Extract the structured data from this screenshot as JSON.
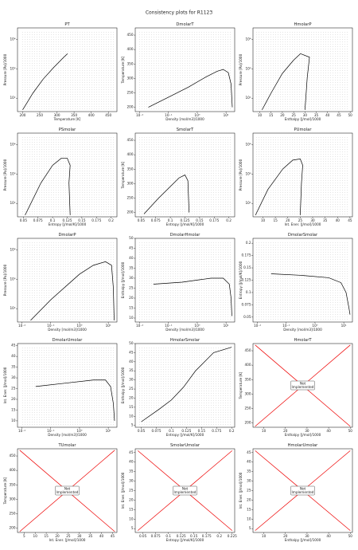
{
  "title": "Consistency plots for R1123",
  "chart_data": [
    {
      "type": "line",
      "title": "PT",
      "xlabel": "Temperature [K]",
      "ylabel": "Pressure [Pa]/1000",
      "xlim": [
        185,
        475
      ],
      "xticks": [
        200,
        250,
        300,
        350,
        400,
        450
      ],
      "ylim": [
        35,
        25000
      ],
      "yscale": "log",
      "yticks": [
        {
          "value": 100,
          "label": "10²"
        },
        {
          "value": 1000,
          "label": "10³"
        },
        {
          "value": 10000,
          "label": "10⁴"
        }
      ],
      "series": [
        {
          "color": "#000000",
          "x": [
            200,
            230,
            260,
            290,
            320,
            331
          ],
          "values": [
            40,
            150,
            450,
            1100,
            2500,
            3300
          ]
        }
      ]
    },
    {
      "type": "line",
      "title": "DmolarT",
      "xlabel": "Density [mol/m3]/1000",
      "ylabel": "Temperature [K]",
      "xlim": [
        0.007,
        20
      ],
      "xscale": "log",
      "xticks": [
        {
          "value": 0.01,
          "label": "10⁻²"
        },
        {
          "value": 0.1,
          "label": "10⁻¹"
        },
        {
          "value": 1,
          "label": "10⁰"
        },
        {
          "value": 10,
          "label": "10¹"
        }
      ],
      "ylim": [
        185,
        475
      ],
      "yticks": [
        200,
        250,
        300,
        350,
        400,
        450
      ],
      "series": [
        {
          "color": "#000000",
          "x": [
            0.02,
            0.1,
            0.5,
            2,
            5,
            8,
            12,
            15,
            16.5
          ],
          "values": [
            200,
            235,
            270,
            305,
            325,
            331,
            320,
            280,
            200
          ]
        }
      ]
    },
    {
      "type": "line",
      "title": "HmolarP",
      "xlabel": "Enthalpy [J/mol]/1000",
      "ylabel": "Pressure [Pa]/1000",
      "xlim": [
        7,
        51
      ],
      "xticks": [
        10,
        15,
        20,
        25,
        30,
        35,
        40,
        45,
        50
      ],
      "ylim": [
        35,
        25000
      ],
      "yscale": "log",
      "yticks": [
        {
          "value": 100,
          "label": "10²"
        },
        {
          "value": 1000,
          "label": "10³"
        },
        {
          "value": 10000,
          "label": "10⁴"
        }
      ],
      "series": [
        {
          "color": "#000000",
          "x": [
            11,
            15,
            20,
            25,
            28,
            32,
            31,
            30
          ],
          "values": [
            40,
            150,
            700,
            2000,
            3300,
            2500,
            500,
            40
          ]
        }
      ]
    },
    {
      "type": "line",
      "title": "PSmolar",
      "xlabel": "Entropy [J/mol/K]/1000",
      "ylabel": "Pressure [Pa]/1000",
      "xlim": [
        0.04,
        0.21
      ],
      "xticks": [
        0.05,
        0.075,
        0.1,
        0.125,
        0.15,
        0.175,
        0.2
      ],
      "ylim": [
        35,
        25000
      ],
      "yscale": "log",
      "yticks": [
        {
          "value": 100,
          "label": "10²"
        },
        {
          "value": 1000,
          "label": "10³"
        },
        {
          "value": 10000,
          "label": "10⁴"
        }
      ],
      "series": [
        {
          "color": "#000000",
          "x": [
            0.053,
            0.08,
            0.1,
            0.115,
            0.125,
            0.13,
            0.128,
            0.13
          ],
          "values": [
            40,
            500,
            2000,
            3500,
            3500,
            2000,
            500,
            40
          ]
        }
      ]
    },
    {
      "type": "line",
      "title": "SmolarT",
      "xlabel": "Entropy [J/mol/K]/1000",
      "ylabel": "Temperature [K]",
      "xlim": [
        0.04,
        0.21
      ],
      "xticks": [
        0.05,
        0.075,
        0.1,
        0.125,
        0.15,
        0.175,
        0.2
      ],
      "ylim": [
        185,
        475
      ],
      "yticks": [
        200,
        250,
        300,
        350,
        400,
        450
      ],
      "series": [
        {
          "color": "#000000",
          "x": [
            0.055,
            0.08,
            0.1,
            0.115,
            0.125,
            0.13,
            0.132
          ],
          "values": [
            195,
            250,
            290,
            320,
            330,
            310,
            200
          ]
        }
      ]
    },
    {
      "type": "line",
      "title": "PUmolar",
      "xlabel": "Int. Ener. [J/mol]/1000",
      "ylabel": "Pressure [Pa]/1000",
      "xlim": [
        6,
        46
      ],
      "xticks": [
        10,
        15,
        20,
        25,
        30,
        35,
        40,
        45
      ],
      "ylim": [
        35,
        25000
      ],
      "yscale": "log",
      "yticks": [
        {
          "value": 100,
          "label": "10²"
        },
        {
          "value": 1000,
          "label": "10³"
        },
        {
          "value": 10000,
          "label": "10⁴"
        }
      ],
      "series": [
        {
          "color": "#000000",
          "x": [
            7,
            12,
            18,
            22,
            25,
            26,
            25.5,
            25
          ],
          "values": [
            40,
            300,
            1500,
            3000,
            3300,
            2000,
            500,
            40
          ]
        }
      ]
    },
    {
      "type": "line",
      "title": "DmolarP",
      "xlabel": "Density [mol/m3]/1000",
      "ylabel": "Pressure [Pa]/1000",
      "xlim": [
        0.007,
        20
      ],
      "xscale": "log",
      "xticks": [
        {
          "value": 0.01,
          "label": "10⁻²"
        },
        {
          "value": 0.1,
          "label": "10⁻¹"
        },
        {
          "value": 1,
          "label": "10⁰"
        },
        {
          "value": 10,
          "label": "10¹"
        }
      ],
      "ylim": [
        35,
        25000
      ],
      "yscale": "log",
      "yticks": [
        {
          "value": 100,
          "label": "10²"
        },
        {
          "value": 1000,
          "label": "10³"
        },
        {
          "value": 10000,
          "label": "10⁴"
        }
      ],
      "series": [
        {
          "color": "#000000",
          "x": [
            0.02,
            0.1,
            1,
            3,
            8,
            13,
            15,
            16
          ],
          "values": [
            40,
            200,
            1500,
            3000,
            4000,
            3000,
            500,
            40
          ]
        }
      ]
    },
    {
      "type": "line",
      "title": "DmolarHmolar",
      "xlabel": "Density [mol/m3]/1000",
      "ylabel": "Enthalpy [J/mol]/1000",
      "xlim": [
        0.007,
        20
      ],
      "xscale": "log",
      "xticks": [
        {
          "value": 0.01,
          "label": "10⁻²"
        },
        {
          "value": 0.1,
          "label": "10⁻¹"
        },
        {
          "value": 1,
          "label": "10⁰"
        },
        {
          "value": 10,
          "label": "10¹"
        }
      ],
      "ylim": [
        8,
        50
      ],
      "yticks": [
        10,
        15,
        20,
        25,
        30,
        35,
        40,
        45,
        50
      ],
      "series": [
        {
          "color": "#000000",
          "x": [
            0.03,
            0.3,
            3,
            8,
            13,
            15,
            16
          ],
          "values": [
            27,
            28,
            30,
            30,
            27,
            20,
            11
          ]
        }
      ]
    },
    {
      "type": "line",
      "title": "DmolarSmolar",
      "xlabel": "Density [mol/m3]/1000",
      "ylabel": "Entropy [J/mol/K]/1000",
      "xlim": [
        0.007,
        20
      ],
      "xscale": "log",
      "xticks": [
        {
          "value": 0.01,
          "label": "10⁻²"
        },
        {
          "value": 0.1,
          "label": "10⁻¹"
        },
        {
          "value": 1,
          "label": "10⁰"
        },
        {
          "value": 10,
          "label": "10¹"
        }
      ],
      "ylim": [
        0.04,
        0.21
      ],
      "yticks": [
        0.05,
        0.075,
        0.1,
        0.125,
        0.15,
        0.175,
        0.2
      ],
      "series": [
        {
          "color": "#000000",
          "x": [
            0.03,
            0.3,
            3,
            8,
            12,
            15,
            16.5
          ],
          "values": [
            0.138,
            0.135,
            0.13,
            0.12,
            0.1,
            0.07,
            0.055
          ]
        }
      ]
    },
    {
      "type": "line",
      "title": "DmolarUmolar",
      "xlabel": "Density [mol/m3]/1000",
      "ylabel": "Int. Ener. [J/mol]/1000",
      "xlim": [
        0.007,
        20
      ],
      "xscale": "log",
      "xticks": [
        {
          "value": 0.01,
          "label": "10⁻²"
        },
        {
          "value": 0.1,
          "label": "10⁻¹"
        },
        {
          "value": 1,
          "label": "10⁰"
        },
        {
          "value": 10,
          "label": "10¹"
        }
      ],
      "ylim": [
        7,
        46
      ],
      "yticks": [
        10,
        15,
        20,
        25,
        30,
        35,
        40,
        45
      ],
      "series": [
        {
          "color": "#000000",
          "x": [
            0.03,
            0.3,
            3,
            8,
            12,
            15,
            16.5
          ],
          "values": [
            26,
            27.5,
            29,
            29,
            26,
            18,
            10
          ]
        }
      ]
    },
    {
      "type": "line",
      "title": "HmolarSmolar",
      "xlabel": "Entropy [J/mol/K]/1000",
      "ylabel": "Enthalpy [J/mol]/1000",
      "xlim": [
        0.04,
        0.205
      ],
      "xticks": [
        0.05,
        0.075,
        0.1,
        0.125,
        0.15,
        0.175,
        0.2
      ],
      "ylim": [
        4,
        50
      ],
      "yticks": [
        5,
        10,
        15,
        20,
        25,
        30,
        35,
        40,
        45,
        50
      ],
      "series": [
        {
          "color": "#000000",
          "x": [
            0.05,
            0.08,
            0.1,
            0.12,
            0.14,
            0.17,
            0.2
          ],
          "values": [
            7,
            14,
            19,
            26,
            35,
            45,
            48
          ]
        }
      ]
    },
    {
      "type": "line",
      "title": "HmolarT",
      "xlabel": "Enthalpy [J/mol]/1000",
      "ylabel": "Temperature [K]",
      "xlim": [
        5,
        51
      ],
      "xticks": [
        10,
        20,
        30,
        40,
        50
      ],
      "ylim": [
        185,
        475
      ],
      "yticks": [
        200,
        250,
        300,
        350,
        400,
        450
      ],
      "annotation": [
        "Not",
        "Implemented"
      ],
      "series": [
        {
          "color": "#ee0000",
          "x": [
            6,
            50
          ],
          "values": [
            470,
            188
          ]
        },
        {
          "color": "#ee0000",
          "x": [
            6,
            50
          ],
          "values": [
            188,
            470
          ]
        }
      ]
    },
    {
      "type": "line",
      "title": "TUmolar",
      "xlabel": "Int. Ener. [J/mol]/1000",
      "ylabel": "Temperature [K]",
      "xlim": [
        2,
        47
      ],
      "xticks": [
        5,
        10,
        15,
        20,
        25,
        30,
        35,
        40,
        45
      ],
      "ylim": [
        185,
        475
      ],
      "yticks": [
        200,
        250,
        300,
        350,
        400,
        450
      ],
      "annotation": [
        "Not",
        "Implemented"
      ],
      "series": [
        {
          "color": "#ee0000",
          "x": [
            3,
            46
          ],
          "values": [
            470,
            188
          ]
        },
        {
          "color": "#ee0000",
          "x": [
            3,
            46
          ],
          "values": [
            188,
            470
          ]
        }
      ]
    },
    {
      "type": "line",
      "title": "SmolarUmolar",
      "xlabel": "Entropy [J/mol/K]/1000",
      "ylabel": "Int. Ener. [J/mol]/1000",
      "xlim": [
        0.035,
        0.23
      ],
      "xticks": [
        0.05,
        0.075,
        0.1,
        0.125,
        0.15,
        0.175,
        0.2,
        0.225
      ],
      "ylim": [
        3,
        47
      ],
      "yticks": [
        5,
        10,
        15,
        20,
        25,
        30,
        35,
        40,
        45
      ],
      "annotation": [
        "Not",
        "Implemented"
      ],
      "series": [
        {
          "color": "#ee0000",
          "x": [
            0.04,
            0.225
          ],
          "values": [
            46,
            4
          ]
        },
        {
          "color": "#ee0000",
          "x": [
            0.04,
            0.225
          ],
          "values": [
            4,
            46
          ]
        }
      ]
    },
    {
      "type": "line",
      "title": "HmolarUmolar",
      "xlabel": "Enthalpy [J/mol]/1000",
      "ylabel": "Int. Ener. [J/mol]/1000",
      "xlim": [
        5,
        51
      ],
      "xticks": [
        10,
        20,
        30,
        40,
        50
      ],
      "ylim": [
        3,
        47
      ],
      "yticks": [
        5,
        10,
        15,
        20,
        25,
        30,
        35,
        40,
        45
      ],
      "annotation": [
        "Not",
        "Implemented"
      ],
      "series": [
        {
          "color": "#ee0000",
          "x": [
            6,
            50
          ],
          "values": [
            46,
            4
          ]
        },
        {
          "color": "#ee0000",
          "x": [
            6,
            50
          ],
          "values": [
            4,
            46
          ]
        }
      ]
    }
  ]
}
